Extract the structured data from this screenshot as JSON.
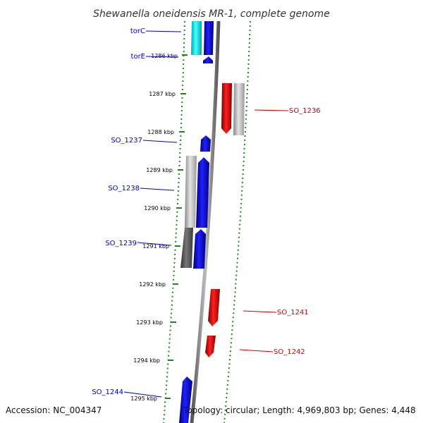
{
  "title": "Shewanella oneidensis MR-1, complete genome",
  "accession": "Accession: NC_004347",
  "topology": "Topology: circular; Length: 4,969,803 bp; Genes: 4,448",
  "colors": {
    "forward_strand": "#0000ee",
    "reverse_strand": "#ee0000",
    "operon_cyan": "#00e0e0",
    "feature_grey": "#bbbbbb",
    "feature_dark_grey": "#555555",
    "backbone": "#8a8a8a",
    "tick_mark": "#1a8a1a"
  },
  "ticks": [
    "1286 kbp",
    "1287 kbp",
    "1288 kbp",
    "1289 kbp",
    "1290 kbp",
    "1291 kbp",
    "1292 kbp",
    "1293 kbp",
    "1294 kbp",
    "1295 kbp"
  ],
  "gene_labels": [
    {
      "name": "torC",
      "strand": "forward"
    },
    {
      "name": "torE",
      "strand": "forward"
    },
    {
      "name": "SO_1236",
      "strand": "reverse"
    },
    {
      "name": "SO_1237",
      "strand": "forward"
    },
    {
      "name": "SO_1238",
      "strand": "forward"
    },
    {
      "name": "SO_1239",
      "strand": "forward"
    },
    {
      "name": "SO_1241",
      "strand": "reverse"
    },
    {
      "name": "SO_1242",
      "strand": "reverse"
    },
    {
      "name": "SO_1244",
      "strand": "forward"
    }
  ]
}
